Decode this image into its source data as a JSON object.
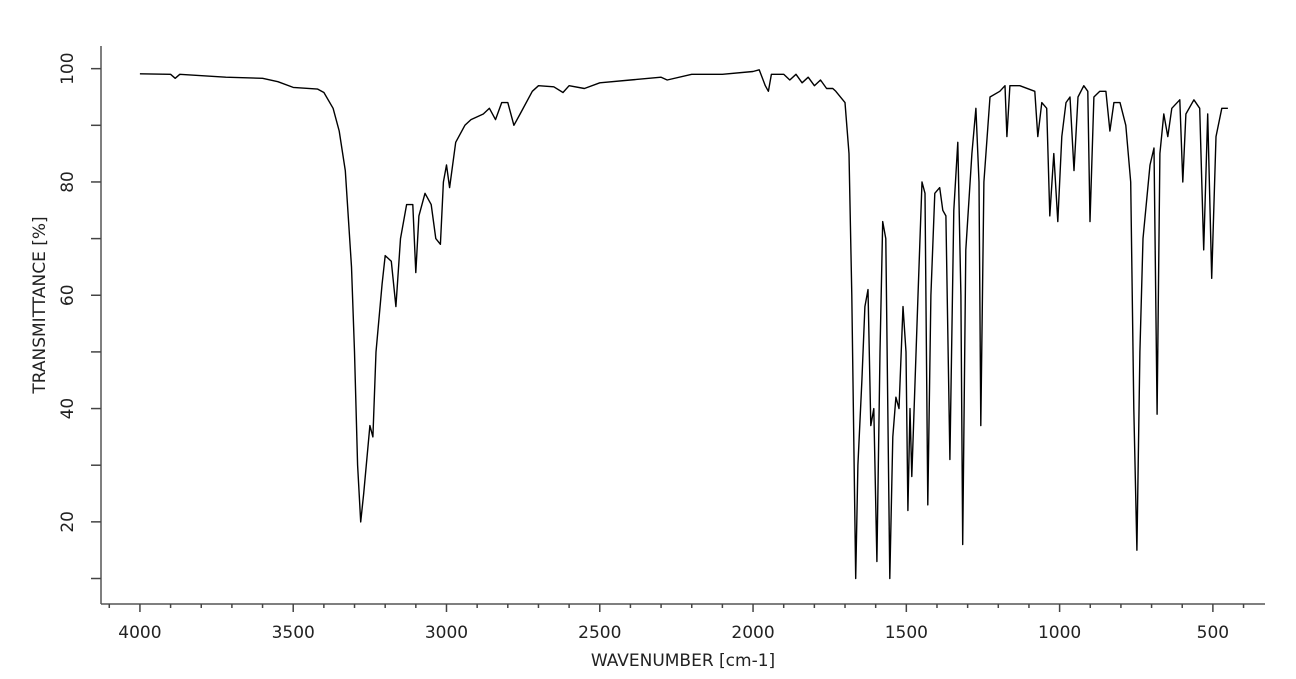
{
  "chart_data": {
    "type": "line",
    "xlabel": "WAVENUMBER [cm-1]",
    "ylabel": "TRANSMITTANCE [%]",
    "color": "#000000",
    "xlim": [
      4127,
      330
    ],
    "ylim": [
      5.5,
      104
    ],
    "xticks": [
      4000,
      3500,
      3000,
      2500,
      2000,
      1500,
      1000,
      500
    ],
    "yticks": [
      20,
      40,
      60,
      80,
      100
    ],
    "xminorticks": [
      4100,
      3900,
      3800,
      3700,
      3600,
      3400,
      3300,
      3200,
      3100,
      2900,
      2800,
      2700,
      2600,
      2400,
      2300,
      2200,
      2100,
      1900,
      1800,
      1700,
      1600,
      1400,
      1300,
      1200,
      1100,
      900,
      800,
      700,
      600,
      400
    ],
    "yminorticks": [
      10,
      30,
      50,
      70,
      90
    ],
    "x": [
      4000,
      3900,
      3885,
      3870,
      3720,
      3600,
      3550,
      3500,
      3420,
      3400,
      3370,
      3350,
      3330,
      3310,
      3300,
      3290,
      3280,
      3270,
      3250,
      3240,
      3230,
      3210,
      3200,
      3180,
      3165,
      3150,
      3130,
      3110,
      3100,
      3090,
      3070,
      3050,
      3035,
      3020,
      3010,
      3000,
      2990,
      2970,
      2940,
      2920,
      2880,
      2860,
      2840,
      2820,
      2800,
      2780,
      2760,
      2720,
      2700,
      2650,
      2620,
      2600,
      2550,
      2500,
      2400,
      2300,
      2280,
      2200,
      2100,
      2000,
      1980,
      1960,
      1950,
      1940,
      1900,
      1880,
      1860,
      1840,
      1820,
      1800,
      1780,
      1760,
      1740,
      1730,
      1700,
      1687,
      1678,
      1665,
      1658,
      1645,
      1635,
      1625,
      1616,
      1606,
      1596,
      1586,
      1577,
      1567,
      1554,
      1544,
      1534,
      1524,
      1511,
      1501,
      1495,
      1488,
      1482,
      1462,
      1449,
      1439,
      1430,
      1420,
      1407,
      1391,
      1381,
      1371,
      1358,
      1345,
      1332,
      1322,
      1316,
      1306,
      1286,
      1273,
      1263,
      1257,
      1247,
      1227,
      1195,
      1178,
      1172,
      1162,
      1130,
      1081,
      1071,
      1058,
      1042,
      1032,
      1019,
      1006,
      993,
      979,
      966,
      953,
      940,
      921,
      908,
      901,
      888,
      869,
      849,
      836,
      823,
      803,
      784,
      768,
      758,
      748,
      738,
      728,
      705,
      692,
      682,
      673,
      660,
      647,
      634,
      608,
      598,
      588,
      562,
      543,
      530,
      517,
      504,
      490,
      471,
      451
    ],
    "values": [
      99.1,
      99,
      98.3,
      99,
      98.5,
      98.3,
      97.7,
      96.7,
      96.4,
      95.8,
      93,
      89,
      82,
      65,
      50,
      30,
      20,
      25,
      37,
      35,
      50,
      62,
      67,
      66,
      58,
      70,
      76,
      76,
      64,
      74,
      78,
      76,
      70,
      69,
      80,
      83,
      79,
      87,
      90,
      91,
      92,
      93,
      91,
      94,
      94,
      90,
      92,
      96,
      97,
      96.8,
      95.8,
      97,
      96.5,
      97.5,
      98,
      98.5,
      98,
      99,
      99,
      99.5,
      99.8,
      97,
      96,
      99,
      99,
      98,
      99,
      97.5,
      98.5,
      97,
      98,
      96.5,
      96.5,
      96,
      94,
      85,
      60,
      10,
      30,
      45,
      58,
      61,
      37,
      40,
      13,
      50,
      73,
      70,
      10,
      35,
      42,
      40,
      58,
      50,
      22,
      40,
      28,
      60,
      80,
      78,
      23,
      60,
      78,
      79,
      75,
      74,
      31,
      75,
      87,
      60,
      16,
      68,
      85,
      93,
      80,
      37,
      80,
      95,
      96,
      97,
      88,
      97,
      97,
      96,
      88,
      94,
      93,
      74,
      85,
      73,
      88,
      94,
      95,
      82,
      95,
      97,
      96,
      73,
      95,
      96,
      96,
      89,
      94,
      94,
      90,
      80,
      40,
      15,
      50,
      70,
      83,
      86,
      39,
      85,
      92,
      88,
      93,
      94.5,
      80,
      92,
      94.5,
      93,
      68,
      92,
      63,
      88,
      93,
      93
    ]
  }
}
